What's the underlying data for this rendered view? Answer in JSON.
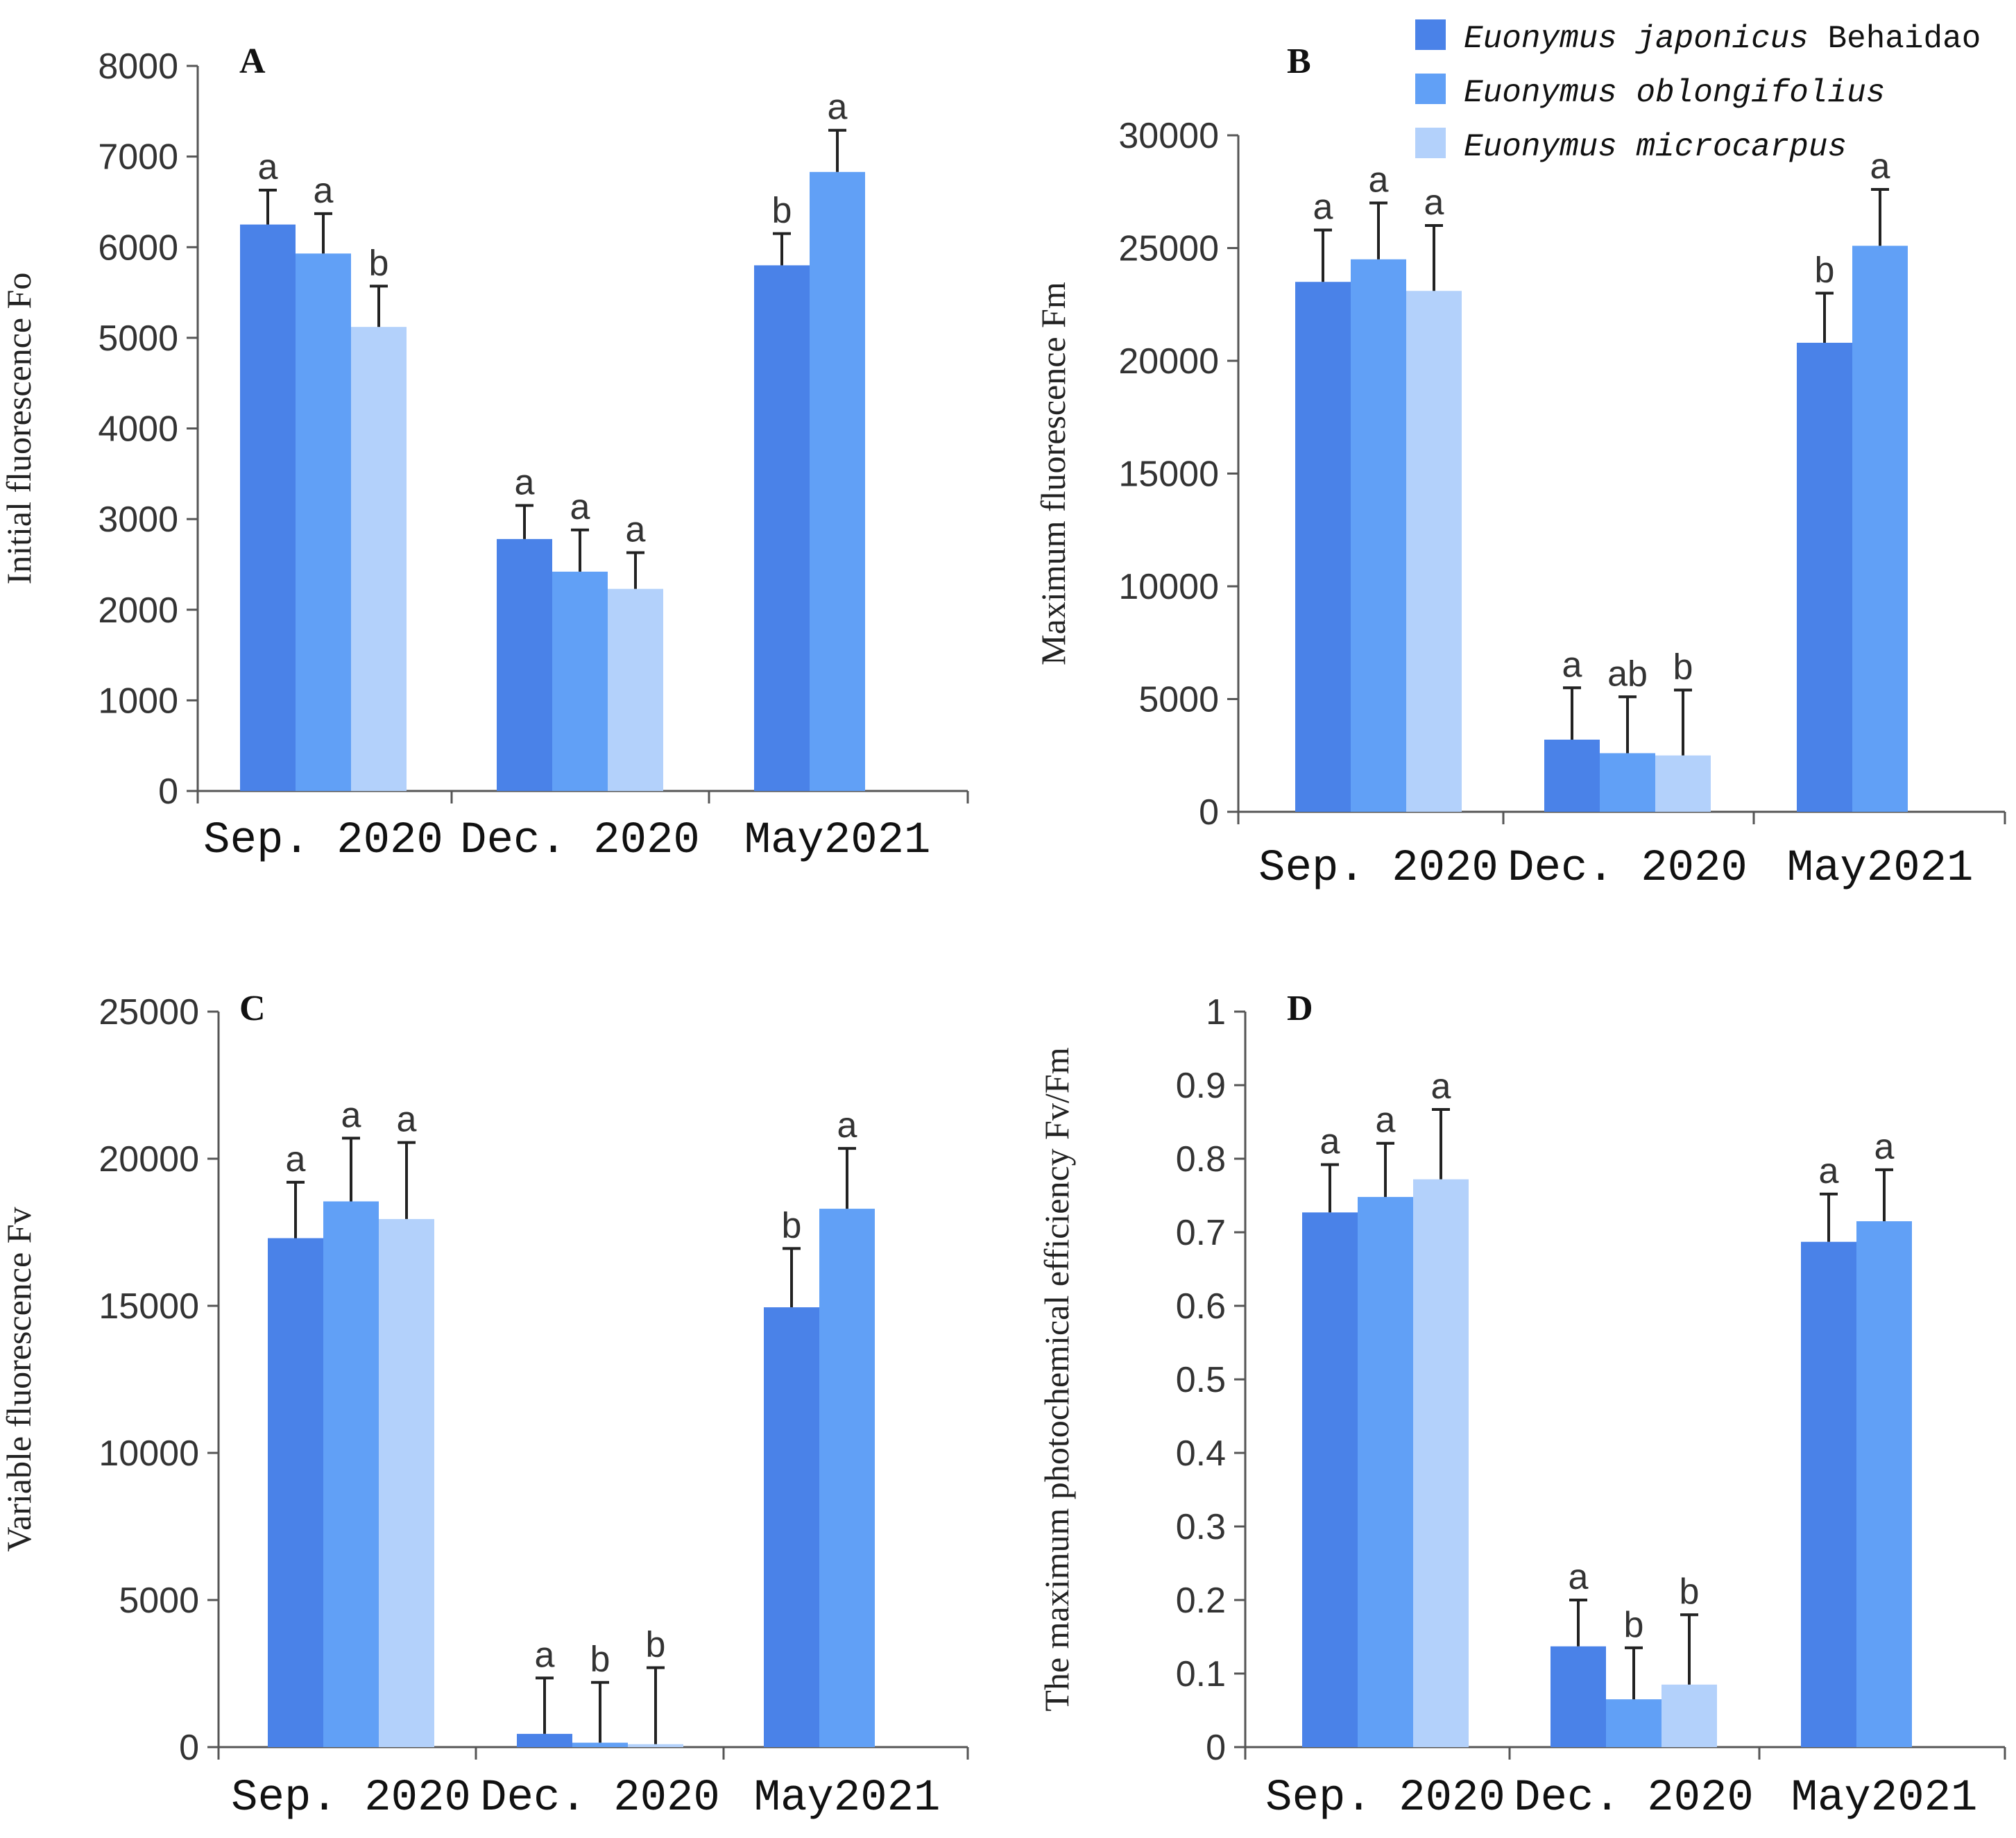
{
  "legend": {
    "entries": [
      {
        "species": "Euonymus japonicus",
        "suffix": " Behaidao",
        "color": "#4a82e8"
      },
      {
        "species": "Euonymus oblongifolius",
        "suffix": "",
        "color": "#61a0f6"
      },
      {
        "species": "Euonymus microcarpus",
        "suffix": "",
        "color": "#b3d1fb"
      }
    ]
  },
  "chart_data": [
    {
      "type": "bar",
      "panel": "A",
      "ylabel": "Initial fluorescence Fo",
      "categories": [
        "Sep. 2020",
        "Dec. 2020",
        "May2021"
      ],
      "ylim": [
        0,
        8000
      ],
      "yticks": [
        "0",
        "1000",
        "2000",
        "3000",
        "4000",
        "5000",
        "6000",
        "7000",
        "8000"
      ],
      "series": [
        {
          "name": "Euonymus japonicus Behaidao",
          "values": [
            6250,
            2780,
            5800
          ],
          "errors": [
            380,
            370,
            350
          ],
          "sig": [
            "a",
            "a",
            "b"
          ]
        },
        {
          "name": "Euonymus oblongifolius",
          "values": [
            5930,
            2420,
            6830
          ],
          "errors": [
            440,
            460,
            460
          ],
          "sig": [
            "a",
            "a",
            "a"
          ]
        },
        {
          "name": "Euonymus microcarpus",
          "values": [
            5120,
            2230,
            null
          ],
          "errors": [
            450,
            400,
            null
          ],
          "sig": [
            "b",
            "a",
            null
          ]
        }
      ]
    },
    {
      "type": "bar",
      "panel": "B",
      "ylabel": "Maximum fluorescence Fm",
      "categories": [
        "Sep. 2020",
        "Dec. 2020",
        "May2021"
      ],
      "ylim": [
        0,
        30000
      ],
      "yticks": [
        "0",
        "5000",
        "10000",
        "15000",
        "20000",
        "25000",
        "30000"
      ],
      "series": [
        {
          "name": "Euonymus japonicus Behaidao",
          "values": [
            23500,
            3200,
            20800
          ],
          "errors": [
            2300,
            2300,
            2200
          ],
          "sig": [
            "a",
            "a",
            "b"
          ]
        },
        {
          "name": "Euonymus oblongifolius",
          "values": [
            24500,
            2600,
            25100
          ],
          "errors": [
            2500,
            2500,
            2500
          ],
          "sig": [
            "a",
            "ab",
            "a"
          ]
        },
        {
          "name": "Euonymus microcarpus",
          "values": [
            23100,
            2500,
            null
          ],
          "errors": [
            2900,
            2900,
            null
          ],
          "sig": [
            "a",
            "b",
            null
          ]
        }
      ]
    },
    {
      "type": "bar",
      "panel": "C",
      "ylabel": "Variable fluorescence Fv",
      "categories": [
        "Sep. 2020",
        "Dec. 2020",
        "May2021"
      ],
      "ylim": [
        0,
        25000
      ],
      "yticks": [
        "0",
        "5000",
        "10000",
        "15000",
        "20000",
        "25000"
      ],
      "series": [
        {
          "name": "Euonymus japonicus Behaidao",
          "values": [
            17300,
            450,
            14950
          ],
          "errors": [
            1900,
            1900,
            2000
          ],
          "sig": [
            "a",
            "a",
            "b"
          ]
        },
        {
          "name": "Euonymus oblongifolius",
          "values": [
            18550,
            150,
            18300
          ],
          "errors": [
            2150,
            2050,
            2050
          ],
          "sig": [
            "a",
            "b",
            "a"
          ]
        },
        {
          "name": "Euonymus microcarpus",
          "values": [
            17950,
            100,
            null
          ],
          "errors": [
            2600,
            2600,
            null
          ],
          "sig": [
            "a",
            "b",
            null
          ]
        }
      ]
    },
    {
      "type": "bar",
      "panel": "D",
      "ylabel": "The maximum photochemical efficiency Fv/Fm",
      "categories": [
        "Sep. 2020",
        "Dec. 2020",
        "May2021"
      ],
      "ylim": [
        0,
        1
      ],
      "yticks": [
        "0",
        "0.1",
        "0.2",
        "0.3",
        "0.4",
        "0.5",
        "0.6",
        "0.7",
        "0.8",
        "0.9",
        "1"
      ],
      "series": [
        {
          "name": "Euonymus japonicus Behaidao",
          "values": [
            0.727,
            0.137,
            0.687
          ],
          "errors": [
            0.065,
            0.063,
            0.065
          ],
          "sig": [
            "a",
            "a",
            "a"
          ]
        },
        {
          "name": "Euonymus oblongifolius",
          "values": [
            0.748,
            0.065,
            0.715
          ],
          "errors": [
            0.073,
            0.07,
            0.07
          ],
          "sig": [
            "a",
            "b",
            "a"
          ]
        },
        {
          "name": "Euonymus microcarpus",
          "values": [
            0.772,
            0.085,
            null
          ],
          "errors": [
            0.095,
            0.095,
            null
          ],
          "sig": [
            "a",
            "b",
            null
          ]
        }
      ]
    }
  ]
}
